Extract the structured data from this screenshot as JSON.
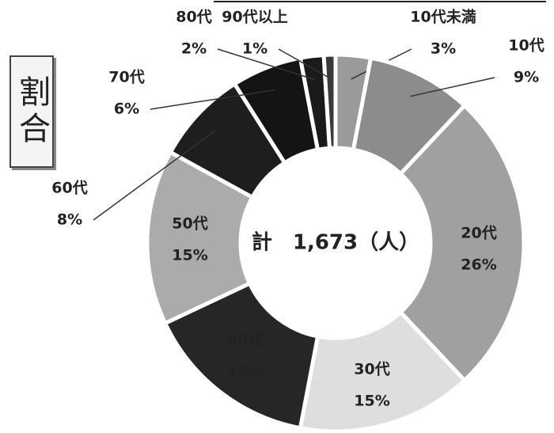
{
  "chart_data": {
    "type": "donut",
    "title": "割合",
    "center_label": "計　1,673（人）",
    "categories": [
      "10代未満",
      "10代",
      "20代",
      "30代",
      "40代",
      "50代",
      "60代",
      "70代",
      "80代",
      "90代以上"
    ],
    "values": [
      3,
      9,
      26,
      15,
      15,
      15,
      8,
      6,
      2,
      1
    ],
    "value_labels": [
      "3%",
      "9%",
      "26%",
      "15%",
      "15%",
      "15%",
      "8%",
      "6%",
      "2%",
      "1%"
    ],
    "colors": [
      "#9a9a9a",
      "#8c8c8c",
      "#a0a0a0",
      "#dedede",
      "#262626",
      "#ababab",
      "#1e1e1e",
      "#141414",
      "#1a1a1a",
      "#3a3a3a"
    ]
  }
}
